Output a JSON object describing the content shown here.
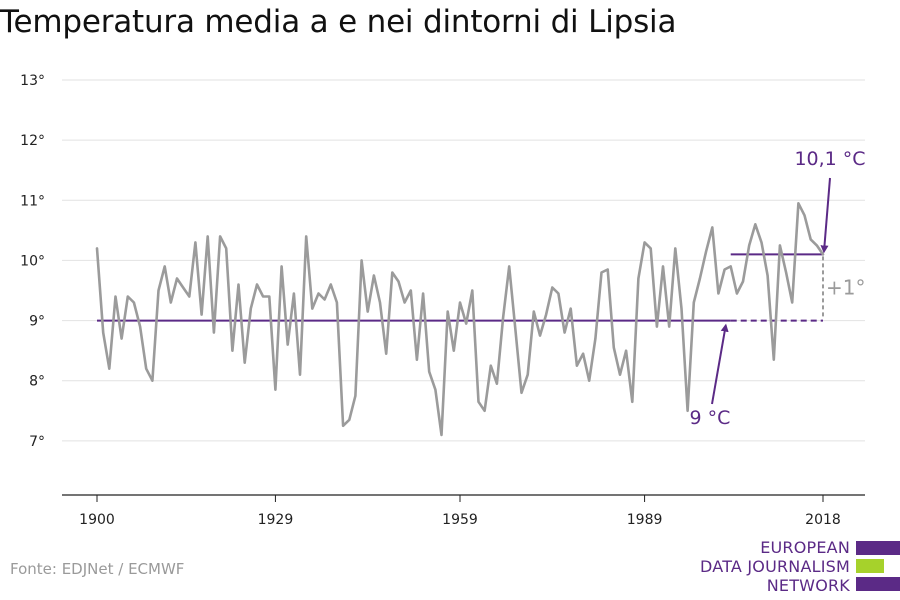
{
  "title": "Temperatura media a e nei dintorni di Lipsia",
  "source": "Fonte: EDJNet / ECMWF",
  "logo": {
    "lines": [
      "EUROPEAN",
      "DATA JOURNALISM",
      "NETWORK"
    ],
    "colors": {
      "primary": "#5b2a86",
      "accent": "#a6d22b"
    }
  },
  "chart_data": {
    "type": "line",
    "title": "Temperatura media a e nei dintorni di Lipsia",
    "xlabel": "",
    "ylabel": "",
    "xlim": [
      1900,
      2018
    ],
    "ylim": [
      6.1,
      13
    ],
    "x_ticks": [
      1900,
      1929,
      1959,
      1989,
      2018
    ],
    "x_tick_labels": [
      "1900",
      "1929",
      "1959",
      "1989",
      "2018"
    ],
    "y_ticks": [
      7,
      8,
      9,
      10,
      11,
      12,
      13
    ],
    "y_tick_labels": [
      "7°",
      "8°",
      "9°",
      "10°",
      "11°",
      "12°",
      "13°"
    ],
    "grid": true,
    "series": [
      {
        "color": "#9b9b9b",
        "x": [
          1900,
          1901,
          1902,
          1903,
          1904,
          1905,
          1906,
          1907,
          1908,
          1909,
          1910,
          1911,
          1912,
          1913,
          1914,
          1915,
          1916,
          1917,
          1918,
          1919,
          1920,
          1921,
          1922,
          1923,
          1924,
          1925,
          1926,
          1927,
          1928,
          1929,
          1930,
          1931,
          1932,
          1933,
          1934,
          1935,
          1936,
          1937,
          1938,
          1939,
          1940,
          1941,
          1942,
          1943,
          1944,
          1945,
          1946,
          1947,
          1948,
          1949,
          1950,
          1951,
          1952,
          1953,
          1954,
          1955,
          1956,
          1957,
          1958,
          1959,
          1960,
          1961,
          1962,
          1963,
          1964,
          1965,
          1966,
          1967,
          1968,
          1969,
          1970,
          1971,
          1972,
          1973,
          1974,
          1975,
          1976,
          1977,
          1978,
          1979,
          1980,
          1981,
          1982,
          1983,
          1984,
          1985,
          1986,
          1987,
          1988,
          1989,
          1990,
          1991,
          1992,
          1993,
          1994,
          1995,
          1996,
          1997,
          1998,
          1999,
          2000,
          2001,
          2002,
          2003,
          2004,
          2005,
          2006,
          2007,
          2008,
          2009,
          2010,
          2011,
          2012,
          2013,
          2014,
          2015,
          2016,
          2017,
          2018
        ],
        "y": [
          10.2,
          8.8,
          8.2,
          9.4,
          8.7,
          9.4,
          9.3,
          8.9,
          8.2,
          8.0,
          9.5,
          9.9,
          9.3,
          9.7,
          9.55,
          9.4,
          10.3,
          9.1,
          10.4,
          8.8,
          10.4,
          10.2,
          8.5,
          9.6,
          8.3,
          9.2,
          9.6,
          9.4,
          9.4,
          7.85,
          9.9,
          8.6,
          9.45,
          8.1,
          10.4,
          9.2,
          9.45,
          9.35,
          9.6,
          9.3,
          7.25,
          7.35,
          7.75,
          10.0,
          9.15,
          9.75,
          9.3,
          8.45,
          9.8,
          9.65,
          9.3,
          9.5,
          8.35,
          9.45,
          8.15,
          7.85,
          7.1,
          9.15,
          8.5,
          9.3,
          8.95,
          9.5,
          7.65,
          7.5,
          8.25,
          7.95,
          9.05,
          9.9,
          8.85,
          7.8,
          8.1,
          9.15,
          8.75,
          9.1,
          9.55,
          9.45,
          8.8,
          9.2,
          8.25,
          8.45,
          8.0,
          8.7,
          9.8,
          9.85,
          8.55,
          8.1,
          8.5,
          7.65,
          9.7,
          10.3,
          10.2,
          8.9,
          9.9,
          8.9,
          10.2,
          9.2,
          7.5,
          9.3,
          9.7,
          10.15,
          10.55,
          9.45,
          9.85,
          9.9,
          9.45,
          9.65,
          10.25,
          10.6,
          10.3,
          9.75,
          8.35,
          10.25,
          9.8,
          9.3,
          10.95,
          10.75,
          10.35,
          10.25,
          10.1
        ]
      }
    ],
    "reference_lines": [
      {
        "value": 9.0,
        "from": 1900,
        "to": 2003,
        "style": "solid",
        "color": "#5b2a86"
      },
      {
        "value": 9.0,
        "from": 2003,
        "to": 2018,
        "style": "dashed",
        "color": "#5b2a86"
      },
      {
        "value": 10.1,
        "from": 2003,
        "to": 2018,
        "style": "solid",
        "color": "#5b2a86"
      }
    ],
    "annotations": {
      "top_label": "10,1 °C",
      "bottom_label": "9 °C",
      "diff_label": "+1°",
      "annotation_color": "#5b2a86",
      "diff_color": "#9b9b9b"
    }
  }
}
